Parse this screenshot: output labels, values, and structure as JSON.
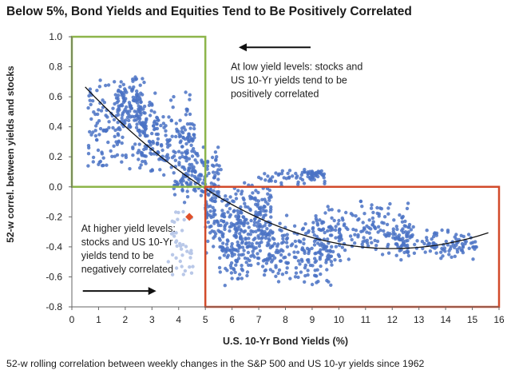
{
  "title": "Below 5%, Bond Yields and Equities Tend to Be Positively Correlated",
  "caption": "52-w rolling correlation between weekly changes in the S&P 500 and US 10-yr yields since 1962",
  "chart_data": {
    "type": "scatter",
    "title": "Below 5%, Bond Yields and Equities Tend to Be Positively Correlated",
    "xlabel": "U.S. 10-Yr Bond Yields (%)",
    "ylabel": "52-w correl. between yields and stocks",
    "xlim": [
      0,
      16
    ],
    "ylim": [
      -0.8,
      1.0
    ],
    "xticks": [
      "0",
      "1",
      "2",
      "3",
      "4",
      "5",
      "6",
      "7",
      "8",
      "9",
      "10",
      "11",
      "12",
      "13",
      "14",
      "15",
      "16"
    ],
    "yticks": [
      "1.0",
      "0.8",
      "0.6",
      "0.4",
      "0.2",
      "0.0",
      "-0.2",
      "-0.4",
      "-0.6",
      "-0.8"
    ],
    "grid": false,
    "colors": {
      "points": "#4a72c4",
      "trend": "#111111",
      "green_box": "#8db54a",
      "red_box": "#d24a2a",
      "highlight": "#e0502a",
      "faded_points": "#b9c8e8"
    },
    "clusters": [
      {
        "x": [
          0.6,
          2.8
        ],
        "y": [
          0.05,
          0.78
        ],
        "n": 160
      },
      {
        "x": [
          1.6,
          2.6
        ],
        "y": [
          0.35,
          0.78
        ],
        "n": 90
      },
      {
        "x": [
          2.5,
          4.6
        ],
        "y": [
          0.0,
          0.65
        ],
        "n": 190
      },
      {
        "x": [
          3.8,
          5.6
        ],
        "y": [
          -0.15,
          0.28
        ],
        "n": 130
      },
      {
        "x": [
          5.0,
          7.5
        ],
        "y": [
          -0.45,
          0.05
        ],
        "n": 230
      },
      {
        "x": [
          5.5,
          9.8
        ],
        "y": [
          -0.68,
          -0.18
        ],
        "n": 320
      },
      {
        "x": [
          7.0,
          9.5
        ],
        "y": [
          0.0,
          0.12
        ],
        "n": 50
      },
      {
        "x": [
          9.0,
          12.8
        ],
        "y": [
          -0.52,
          -0.08
        ],
        "n": 200
      },
      {
        "x": [
          12.0,
          15.2
        ],
        "y": [
          -0.5,
          -0.28
        ],
        "n": 110
      },
      {
        "x": [
          8.6,
          9.4
        ],
        "y": [
          0.06,
          0.12
        ],
        "n": 25
      }
    ],
    "faded_cluster": {
      "x": [
        3.6,
        4.6
      ],
      "y": [
        -0.6,
        -0.15
      ],
      "n": 40
    },
    "trendline": {
      "type": "quadratic",
      "x_range": [
        0.5,
        15.6
      ],
      "points": [
        [
          0.5,
          0.65
        ],
        [
          2.0,
          0.42
        ],
        [
          4.0,
          0.12
        ],
        [
          5.0,
          -0.02
        ],
        [
          8.0,
          -0.28
        ],
        [
          10.0,
          -0.38
        ],
        [
          12.0,
          -0.42
        ],
        [
          14.0,
          -0.38
        ],
        [
          15.6,
          -0.3
        ]
      ]
    },
    "highlight_point": {
      "x": 4.4,
      "y": -0.2
    },
    "boxes": [
      {
        "name": "low-yield-box",
        "x": [
          0.0,
          5.0
        ],
        "y": [
          0.0,
          1.0
        ],
        "color": "#8db54a"
      },
      {
        "name": "high-yield-box",
        "x": [
          5.0,
          16.0
        ],
        "y": [
          -0.8,
          0.0
        ],
        "color": "#d24a2a"
      }
    ],
    "annotations": [
      {
        "lines": [
          "At low yield levels: stocks and",
          "US 10-Yr yields tend to be",
          "positively correlated"
        ],
        "x": 5.95,
        "y": 0.78,
        "arrow": "left"
      },
      {
        "lines": [
          "At higher yield levels:",
          "stocks and US 10-Yr",
          "yields tend to be",
          "negatively correlated"
        ],
        "x": 0.35,
        "y": -0.3,
        "arrow": "right"
      }
    ]
  }
}
